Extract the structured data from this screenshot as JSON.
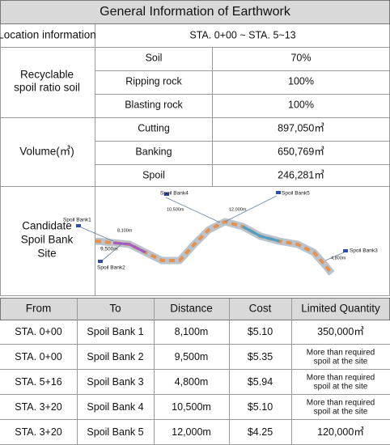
{
  "title": "General Information of Earthwork",
  "location": {
    "label": "Location information",
    "value": "STA. 0+00 ~ STA. 5~13"
  },
  "recyclable": {
    "label": [
      "Recyclable",
      "spoil ratio soil"
    ],
    "rows": [
      [
        "Soil",
        "70%"
      ],
      [
        "Ripping rock",
        "100%"
      ],
      [
        "Blasting rock",
        "100%"
      ]
    ]
  },
  "volume": {
    "label": "Volume(㎥)",
    "rows": [
      [
        "Cutting",
        "897,050㎥"
      ],
      [
        "Banking",
        "650,769㎥"
      ],
      [
        "Spoil",
        "246,281㎥"
      ]
    ]
  },
  "candidate": {
    "label": [
      "Candidate",
      "Spoil Bank",
      "Site"
    ],
    "map_labels": [
      "Spoil Bank1",
      "8,100m",
      "9,500m",
      "Spoil Bank2",
      "Spoil Bank4",
      "10,500m",
      "Spoil Bank5",
      "12,000m",
      "Spoil Bank3",
      "4,800m"
    ]
  },
  "table": {
    "header": [
      "From",
      "To",
      "Distance",
      "Cost",
      "Limited Quantity"
    ],
    "rows": [
      [
        "STA. 0+00",
        "Spoil Bank 1",
        "8,100m",
        "$5.10",
        "350,000㎥"
      ],
      [
        "STA. 0+00",
        "Spoil Bank 2",
        "9,500m",
        "$5.35",
        [
          "More than required",
          "spoil at the site"
        ]
      ],
      [
        "STA. 5+16",
        "Spoil Bank 3",
        "4,800m",
        "$5.94",
        [
          "More than required",
          "spoil at the site"
        ]
      ],
      [
        "STA. 3+20",
        "Spoil Bank 4",
        "10,500m",
        "$5.10",
        [
          "More than required",
          "spoil at the site"
        ]
      ],
      [
        "STA. 3+20",
        "Spoil Bank 5",
        "12,000m",
        "$4.25",
        "120,000㎥"
      ]
    ]
  }
}
